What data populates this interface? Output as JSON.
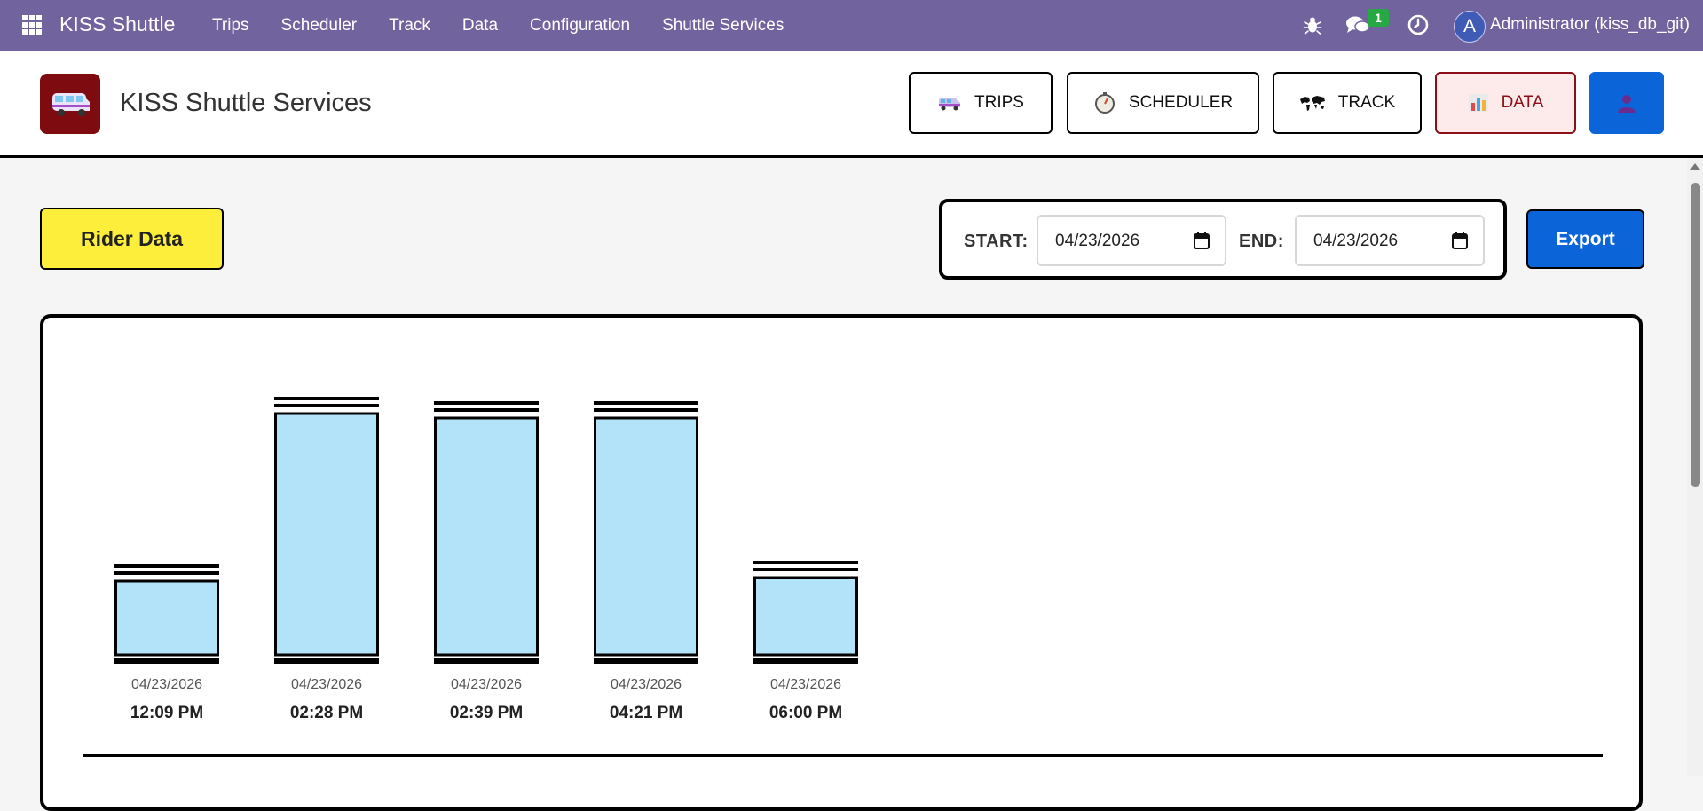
{
  "navbar": {
    "brand": "KISS Shuttle",
    "menu": [
      "Trips",
      "Scheduler",
      "Track",
      "Data",
      "Configuration",
      "Shuttle Services"
    ],
    "message_count": "1",
    "avatar_initial": "A",
    "user": "Administrator (kiss_db_git)",
    "icons": [
      "apps-grid-icon",
      "bug-icon",
      "chat-icon",
      "clock-icon"
    ],
    "color": "#71639e"
  },
  "header": {
    "title": "KISS Shuttle Services",
    "buttons": {
      "trips": "TRIPS",
      "scheduler": "SCHEDULER",
      "track": "TRACK",
      "data": "DATA"
    },
    "icons": [
      "shuttle-van-icon",
      "stopwatch-icon",
      "world-map-icon",
      "bar-chart-icon",
      "user-icon"
    ]
  },
  "filters": {
    "rider_button": "Rider Data",
    "start_label": "START:",
    "start_value": "04/23/2026",
    "end_label": "END:",
    "end_value": "04/23/2026",
    "export_label": "Export"
  },
  "colors": {
    "rider_button": "#fdee3b",
    "export_button": "#0b64d8",
    "data_button_bg": "#fdeaea",
    "data_button_text": "#8a0f16",
    "bar_fill": "#b2e3f8"
  },
  "chart_data": {
    "type": "bar",
    "categories": [
      {
        "date": "04/23/2026",
        "time": "12:09 PM"
      },
      {
        "date": "04/23/2026",
        "time": "02:28 PM"
      },
      {
        "date": "04/23/2026",
        "time": "02:39 PM"
      },
      {
        "date": "04/23/2026",
        "time": "04:21 PM"
      },
      {
        "date": "04/23/2026",
        "time": "06:00 PM"
      }
    ],
    "values": [
      83,
      272,
      267,
      267,
      87
    ],
    "ylim": [
      0,
      300
    ],
    "title": "",
    "xlabel": "",
    "ylabel": "",
    "grid": false,
    "legend": "none"
  }
}
